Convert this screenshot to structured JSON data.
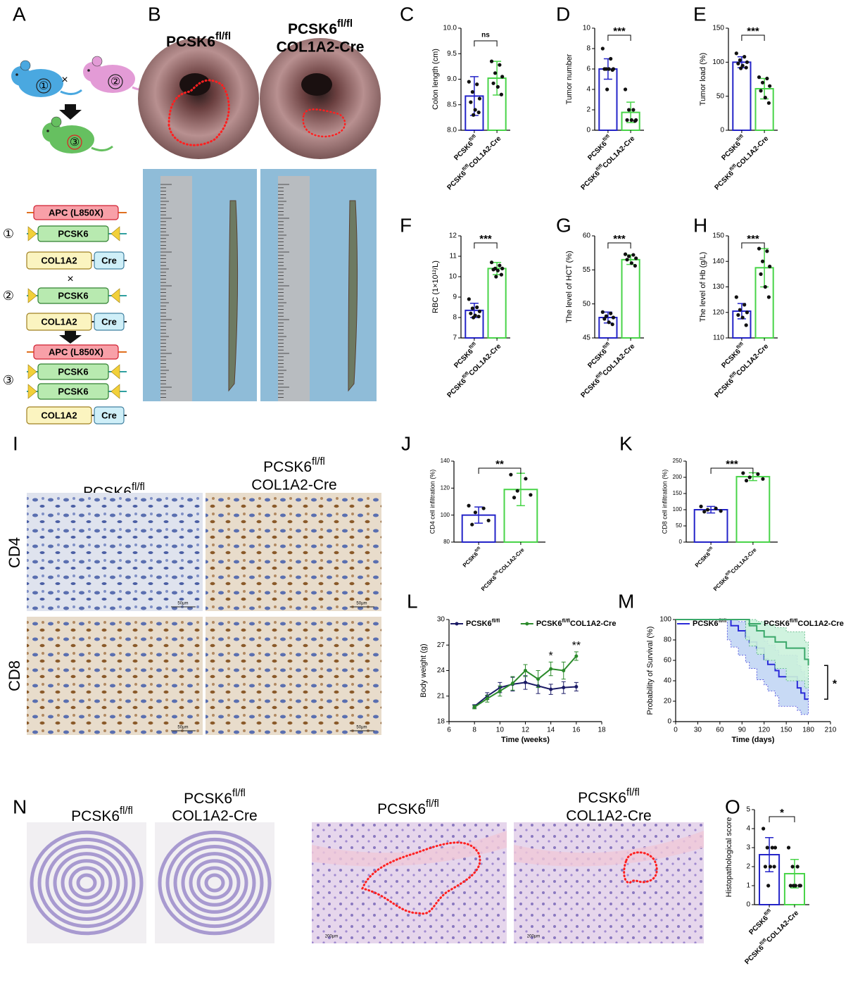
{
  "figure_panels": [
    "A",
    "B",
    "I",
    "N"
  ],
  "diagram": {
    "numbers": [
      "①",
      "②",
      "③"
    ],
    "cross": "×",
    "apc": "APC (L850X)",
    "pcsk6": "PCSK6",
    "col1a2": "COL1A2",
    "cre": "Cre"
  },
  "image_labels": {
    "control": "PCSK6fl/fl",
    "cre": "COL1A2-Cre",
    "cd4": "CD4",
    "cd8": "CD8",
    "scale_i": "50μm",
    "scale_n": "200μm"
  },
  "chart_data": [
    {
      "panel": "C",
      "type": "bar",
      "ylabel": "Colon length (cm)",
      "categories": [
        "PCSK6fl/fl",
        "PCSK6fl/flCOL1A2-Cre"
      ],
      "values": [
        8.67,
        9.02
      ],
      "errors": [
        0.38,
        0.33
      ],
      "points": [
        [
          8.95,
          8.9,
          8.75,
          8.62,
          8.55,
          8.4,
          8.35,
          8.3
        ],
        [
          9.35,
          9.28,
          9.12,
          9.05,
          8.92,
          8.85,
          8.7
        ]
      ],
      "colors": [
        "#2323c8",
        "#48d448"
      ],
      "ylim": [
        8,
        10
      ],
      "yticks": [
        {
          "value": 8,
          "label": "8.0"
        },
        {
          "value": 8.5,
          "label": "8.5"
        },
        {
          "value": 9,
          "label": "9.0"
        },
        {
          "value": 9.5,
          "label": "9.5"
        },
        {
          "value": 10,
          "label": "10.0"
        }
      ],
      "annotation": "ns"
    },
    {
      "panel": "D",
      "type": "bar",
      "ylabel": "Tumor number",
      "categories": [
        "PCSK6fl/fl",
        "PCSK6fl/flCOL1A2-Cre"
      ],
      "values": [
        6.0,
        1.75
      ],
      "errors": [
        1.0,
        1.0
      ],
      "points": [
        [
          8,
          7,
          6,
          6,
          6,
          6,
          5.9,
          4
        ],
        [
          4,
          2,
          2,
          1,
          1,
          1,
          0.9
        ]
      ],
      "colors": [
        "#2323c8",
        "#48d448"
      ],
      "ylim": [
        0,
        10
      ],
      "yticks": [
        0,
        2,
        4,
        6,
        8,
        10
      ],
      "annotation": "***"
    },
    {
      "panel": "E",
      "type": "bar",
      "ylabel": "Tumor load (%)",
      "categories": [
        "PCSK6fl/fl",
        "PCSK6fl/flCOL1A2-Cre"
      ],
      "values": [
        100,
        61
      ],
      "errors": [
        8,
        15
      ],
      "points": [
        [
          113,
          108,
          103,
          100,
          98,
          95,
          92,
          91
        ],
        [
          78,
          76,
          70,
          65,
          58,
          48,
          40
        ]
      ],
      "colors": [
        "#2323c8",
        "#48d448"
      ],
      "ylim": [
        0,
        150
      ],
      "yticks": [
        0,
        50,
        100,
        150
      ],
      "annotation": "***"
    },
    {
      "panel": "F",
      "type": "bar",
      "ylabel": "RBC (1×10¹²/L)",
      "categories": [
        "PCSK6fl/fl",
        "PCSK6fl/flCOL1A2-Cre"
      ],
      "values": [
        8.35,
        10.4
      ],
      "errors": [
        0.35,
        0.3
      ],
      "points": [
        [
          8.9,
          8.5,
          8.45,
          8.3,
          8.2,
          8.1,
          8.05,
          8.0
        ],
        [
          10.7,
          10.55,
          10.4,
          10.4,
          10.35,
          10.3,
          10.1,
          10.0
        ]
      ],
      "colors": [
        "#2323c8",
        "#48d448"
      ],
      "ylim": [
        7,
        12
      ],
      "yticks": [
        7,
        8,
        9,
        10,
        11,
        12
      ],
      "annotation": "***"
    },
    {
      "panel": "G",
      "type": "bar",
      "ylabel": "The level of HCT (%)",
      "categories": [
        "PCSK6fl/fl",
        "PCSK6fl/flCOL1A2-Cre"
      ],
      "values": [
        48.0,
        56.5
      ],
      "errors": [
        0.8,
        0.7
      ],
      "points": [
        [
          48.8,
          48.6,
          48.2,
          48.0,
          47.8,
          47.3,
          47.0
        ],
        [
          57.3,
          57.2,
          57.0,
          56.7,
          56.5,
          56.0,
          55.6
        ]
      ],
      "colors": [
        "#2323c8",
        "#48d448"
      ],
      "ylim": [
        45,
        60
      ],
      "yticks": [
        45,
        50,
        55,
        60
      ],
      "annotation": "***"
    },
    {
      "panel": "H",
      "type": "bar",
      "ylabel": "The level of Hb (g/L)",
      "categories": [
        "PCSK6fl/fl",
        "PCSK6fl/flCOL1A2-Cre"
      ],
      "values": [
        120.5,
        137.5
      ],
      "errors": [
        3,
        7.5
      ],
      "points": [
        [
          126,
          123,
          121,
          120,
          119,
          118,
          115
        ],
        [
          145,
          144,
          140,
          138,
          135,
          130,
          126
        ]
      ],
      "colors": [
        "#2323c8",
        "#48d448"
      ],
      "ylim": [
        110,
        150
      ],
      "yticks": [
        110,
        120,
        130,
        140,
        150
      ],
      "annotation": "***"
    },
    {
      "panel": "J",
      "type": "bar",
      "ylabel": "CD4 cell infiltration (%)",
      "categories": [
        "PCSK6fl/fl",
        "PCSK6fl/flCOL1A2-Cre"
      ],
      "values": [
        100,
        119
      ],
      "errors": [
        6,
        12
      ],
      "points": [
        [
          107,
          105,
          102,
          96,
          93
        ],
        [
          130,
          127,
          118,
          115,
          113
        ]
      ],
      "colors": [
        "#2323c8",
        "#48d448"
      ],
      "ylim": [
        80,
        140
      ],
      "yticks": [
        80,
        100,
        120,
        140
      ],
      "annotation": "**"
    },
    {
      "panel": "K",
      "type": "bar",
      "ylabel": "CD8 cell infiltration (%)",
      "categories": [
        "PCSK6fl/fl",
        "PCSK6fl/flCOL1A2-Cre"
      ],
      "values": [
        100,
        202
      ],
      "errors": [
        10,
        12
      ],
      "points": [
        [
          110,
          104,
          100,
          96,
          94
        ],
        [
          213,
          210,
          200,
          195,
          190
        ]
      ],
      "colors": [
        "#2323c8",
        "#48d448"
      ],
      "ylim": [
        0,
        250
      ],
      "yticks": [
        0,
        50,
        100,
        150,
        200,
        250
      ],
      "annotation": "***"
    },
    {
      "panel": "L",
      "type": "line",
      "xlabel": "Time (weeks)",
      "ylabel": "Body weight (g)",
      "x": [
        8,
        9,
        10,
        11,
        12,
        13,
        14,
        15,
        16
      ],
      "series": [
        {
          "name": "PCSK6fl/fl",
          "color": "#1b1b66",
          "values": [
            19.8,
            21.0,
            22.0,
            22.4,
            22.6,
            22.2,
            21.8,
            22.0,
            22.1
          ],
          "errors": [
            0.2,
            0.4,
            0.6,
            0.8,
            0.8,
            0.9,
            0.6,
            0.7,
            0.5
          ]
        },
        {
          "name": "PCSK6fl/flCOL1A2-Cre",
          "color": "#2b8a2b",
          "values": [
            19.7,
            20.7,
            21.6,
            22.5,
            24.0,
            23.0,
            24.2,
            24.0,
            25.7
          ],
          "errors": [
            0.2,
            0.4,
            0.6,
            0.8,
            0.7,
            1.0,
            0.8,
            1.0,
            0.5
          ]
        }
      ],
      "xlim": [
        6,
        18
      ],
      "xticks": [
        6,
        8,
        10,
        12,
        14,
        16,
        18
      ],
      "ylim": [
        18,
        30
      ],
      "yticks": [
        18,
        21,
        24,
        27,
        30
      ],
      "annotations": [
        {
          "x": 14,
          "text": "*"
        },
        {
          "x": 16,
          "text": "**"
        }
      ]
    },
    {
      "panel": "M",
      "type": "step",
      "xlabel": "Time (days)",
      "ylabel": "Probability of Survival (%)",
      "series": [
        {
          "name": "PCSK6fl/fl",
          "color": "#2a2ad8",
          "band_color": "#c3d6f5",
          "x": [
            0,
            70,
            75,
            85,
            95,
            100,
            110,
            120,
            125,
            135,
            140,
            165,
            170,
            175,
            180
          ],
          "values": [
            100,
            100,
            94,
            89,
            83,
            78,
            72,
            61,
            56,
            50,
            44,
            33,
            28,
            22,
            22
          ],
          "lower": [
            100,
            100,
            80,
            73,
            65,
            58,
            52,
            41,
            36,
            30,
            25,
            15,
            11,
            7,
            7
          ],
          "upper": [
            100,
            100,
            100,
            98,
            96,
            93,
            89,
            79,
            75,
            70,
            65,
            55,
            49,
            43,
            43
          ]
        },
        {
          "name": "PCSK6fl/flCOL1A2-Cre",
          "color": "#3aa86a",
          "band_color": "#ccf2dc",
          "x": [
            0,
            95,
            100,
            110,
            120,
            135,
            150,
            175,
            180
          ],
          "values": [
            100,
            100,
            94,
            89,
            83,
            78,
            72,
            61,
            55
          ],
          "lower": [
            100,
            100,
            80,
            74,
            66,
            60,
            52,
            40,
            33
          ],
          "upper": [
            100,
            100,
            100,
            98,
            95,
            92,
            88,
            78,
            73
          ]
        }
      ],
      "xlim": [
        0,
        210
      ],
      "xticks": [
        0,
        30,
        60,
        90,
        120,
        150,
        180,
        210
      ],
      "ylim": [
        0,
        100
      ],
      "yticks": [
        0,
        20,
        40,
        60,
        80,
        100
      ],
      "annotation": "*"
    },
    {
      "panel": "O",
      "type": "bar",
      "ylabel": "Histopathological score",
      "categories": [
        "PCSK6fl/fl",
        "PCSK6fl/flCOL1A2-Cre"
      ],
      "values": [
        2.63,
        1.63
      ],
      "errors": [
        0.9,
        0.75
      ],
      "points": [
        [
          4,
          3,
          3,
          3,
          2,
          2,
          2,
          1
        ],
        [
          3,
          2,
          2,
          1,
          1,
          1,
          1,
          1
        ]
      ],
      "colors": [
        "#2323c8",
        "#48d448"
      ],
      "ylim": [
        0,
        5
      ],
      "yticks": [
        0,
        1,
        2,
        3,
        4,
        5
      ],
      "annotation": "*"
    }
  ]
}
